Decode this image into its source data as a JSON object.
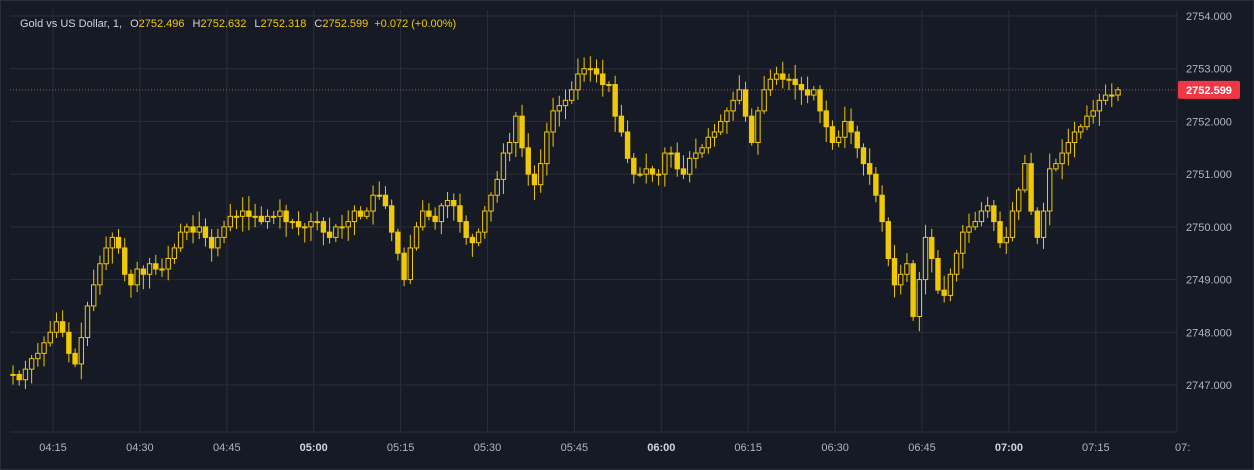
{
  "colors": {
    "background": "#161a25",
    "grid": "#2a2e39",
    "candle_up_border": "#f0c808",
    "candle_down_fill": "#f0c808",
    "candle_up_fill": "#161a25",
    "text": "#d1d4dc",
    "axis_text": "#b2b5be",
    "price_tag": "#f23645",
    "price_line": "#c2485a"
  },
  "legend": {
    "symbol": "Gold vs US Dollar, 1,",
    "open_label": "O",
    "open_value": "2752.496",
    "high_label": "H",
    "high_value": "2752.632",
    "low_label": "L",
    "low_value": "2752.318",
    "close_label": "C",
    "close_value": "2752.599",
    "change": "+0.072 (+0.00%)"
  },
  "last_price_tag": "2752.599",
  "chart_data": {
    "type": "candlestick",
    "title": "",
    "xlabel": "",
    "ylabel": "",
    "ylim": [
      2746.3,
      2754.2
    ],
    "grid": true,
    "x_ticks": [
      "04:15",
      "04:30",
      "04:45",
      "05:00",
      "05:15",
      "05:30",
      "05:45",
      "06:00",
      "06:15",
      "06:30",
      "06:45",
      "07:00",
      "07:15",
      "07:"
    ],
    "y_ticks": [
      "2747.000",
      "2748.000",
      "2749.000",
      "2750.000",
      "2751.000",
      "2752.000",
      "2753.000",
      "2754.000"
    ],
    "last_price": 2752.599,
    "open": 2747.2,
    "closes_approx": [
      2747.2,
      2747.1,
      2747.3,
      2747.5,
      2747.6,
      2747.8,
      2748.0,
      2748.2,
      2748.0,
      2747.6,
      2747.4,
      2747.9,
      2748.5,
      2748.9,
      2749.3,
      2749.6,
      2749.8,
      2749.6,
      2749.1,
      2748.9,
      2749.2,
      2749.1,
      2749.3,
      2749.2,
      2749.2,
      2749.4,
      2749.6,
      2749.9,
      2750.0,
      2749.9,
      2750.0,
      2749.8,
      2749.6,
      2749.8,
      2750.0,
      2750.2,
      2750.2,
      2750.3,
      2750.2,
      2750.2,
      2750.1,
      2750.2,
      2750.2,
      2750.3,
      2750.1,
      2750.1,
      2750.0,
      2750.0,
      2750.1,
      2750.1,
      2749.9,
      2749.8,
      2750.0,
      2750.0,
      2750.1,
      2750.3,
      2750.2,
      2750.3,
      2750.6,
      2750.6,
      2750.4,
      2749.9,
      2749.5,
      2749.0,
      2749.6,
      2750.0,
      2750.3,
      2750.2,
      2750.1,
      2750.4,
      2750.5,
      2750.4,
      2750.1,
      2749.8,
      2749.7,
      2749.9,
      2750.3,
      2750.6,
      2750.9,
      2751.4,
      2751.6,
      2752.1,
      2751.5,
      2751.0,
      2750.8,
      2751.2,
      2751.8,
      2752.2,
      2752.3,
      2752.4,
      2752.6,
      2752.9,
      2753.0,
      2753.0,
      2752.9,
      2752.7,
      2752.7,
      2752.1,
      2751.8,
      2751.3,
      2751.0,
      2751.0,
      2751.1,
      2751.0,
      2751.0,
      2751.4,
      2751.4,
      2751.1,
      2751.0,
      2751.3,
      2751.4,
      2751.5,
      2751.7,
      2751.8,
      2752.0,
      2752.2,
      2752.4,
      2752.6,
      2752.1,
      2751.6,
      2752.2,
      2752.6,
      2752.8,
      2752.9,
      2752.8,
      2752.8,
      2752.7,
      2752.6,
      2752.5,
      2752.6,
      2752.2,
      2751.9,
      2751.6,
      2751.7,
      2752.0,
      2751.8,
      2751.5,
      2751.2,
      2751.0,
      2750.6,
      2750.1,
      2749.4,
      2748.9,
      2749.1,
      2749.3,
      2748.3,
      2749.0,
      2749.8,
      2749.4,
      2748.8,
      2748.7,
      2749.1,
      2749.5,
      2749.9,
      2750.0,
      2750.1,
      2750.3,
      2750.4,
      2750.1,
      2749.7,
      2749.8,
      2750.3,
      2750.7,
      2751.2,
      2750.3,
      2749.8,
      2750.3,
      2751.1,
      2751.2,
      2751.4,
      2751.6,
      2751.8,
      2751.9,
      2752.1,
      2752.2,
      2752.4,
      2752.5,
      2752.5,
      2752.6
    ]
  }
}
